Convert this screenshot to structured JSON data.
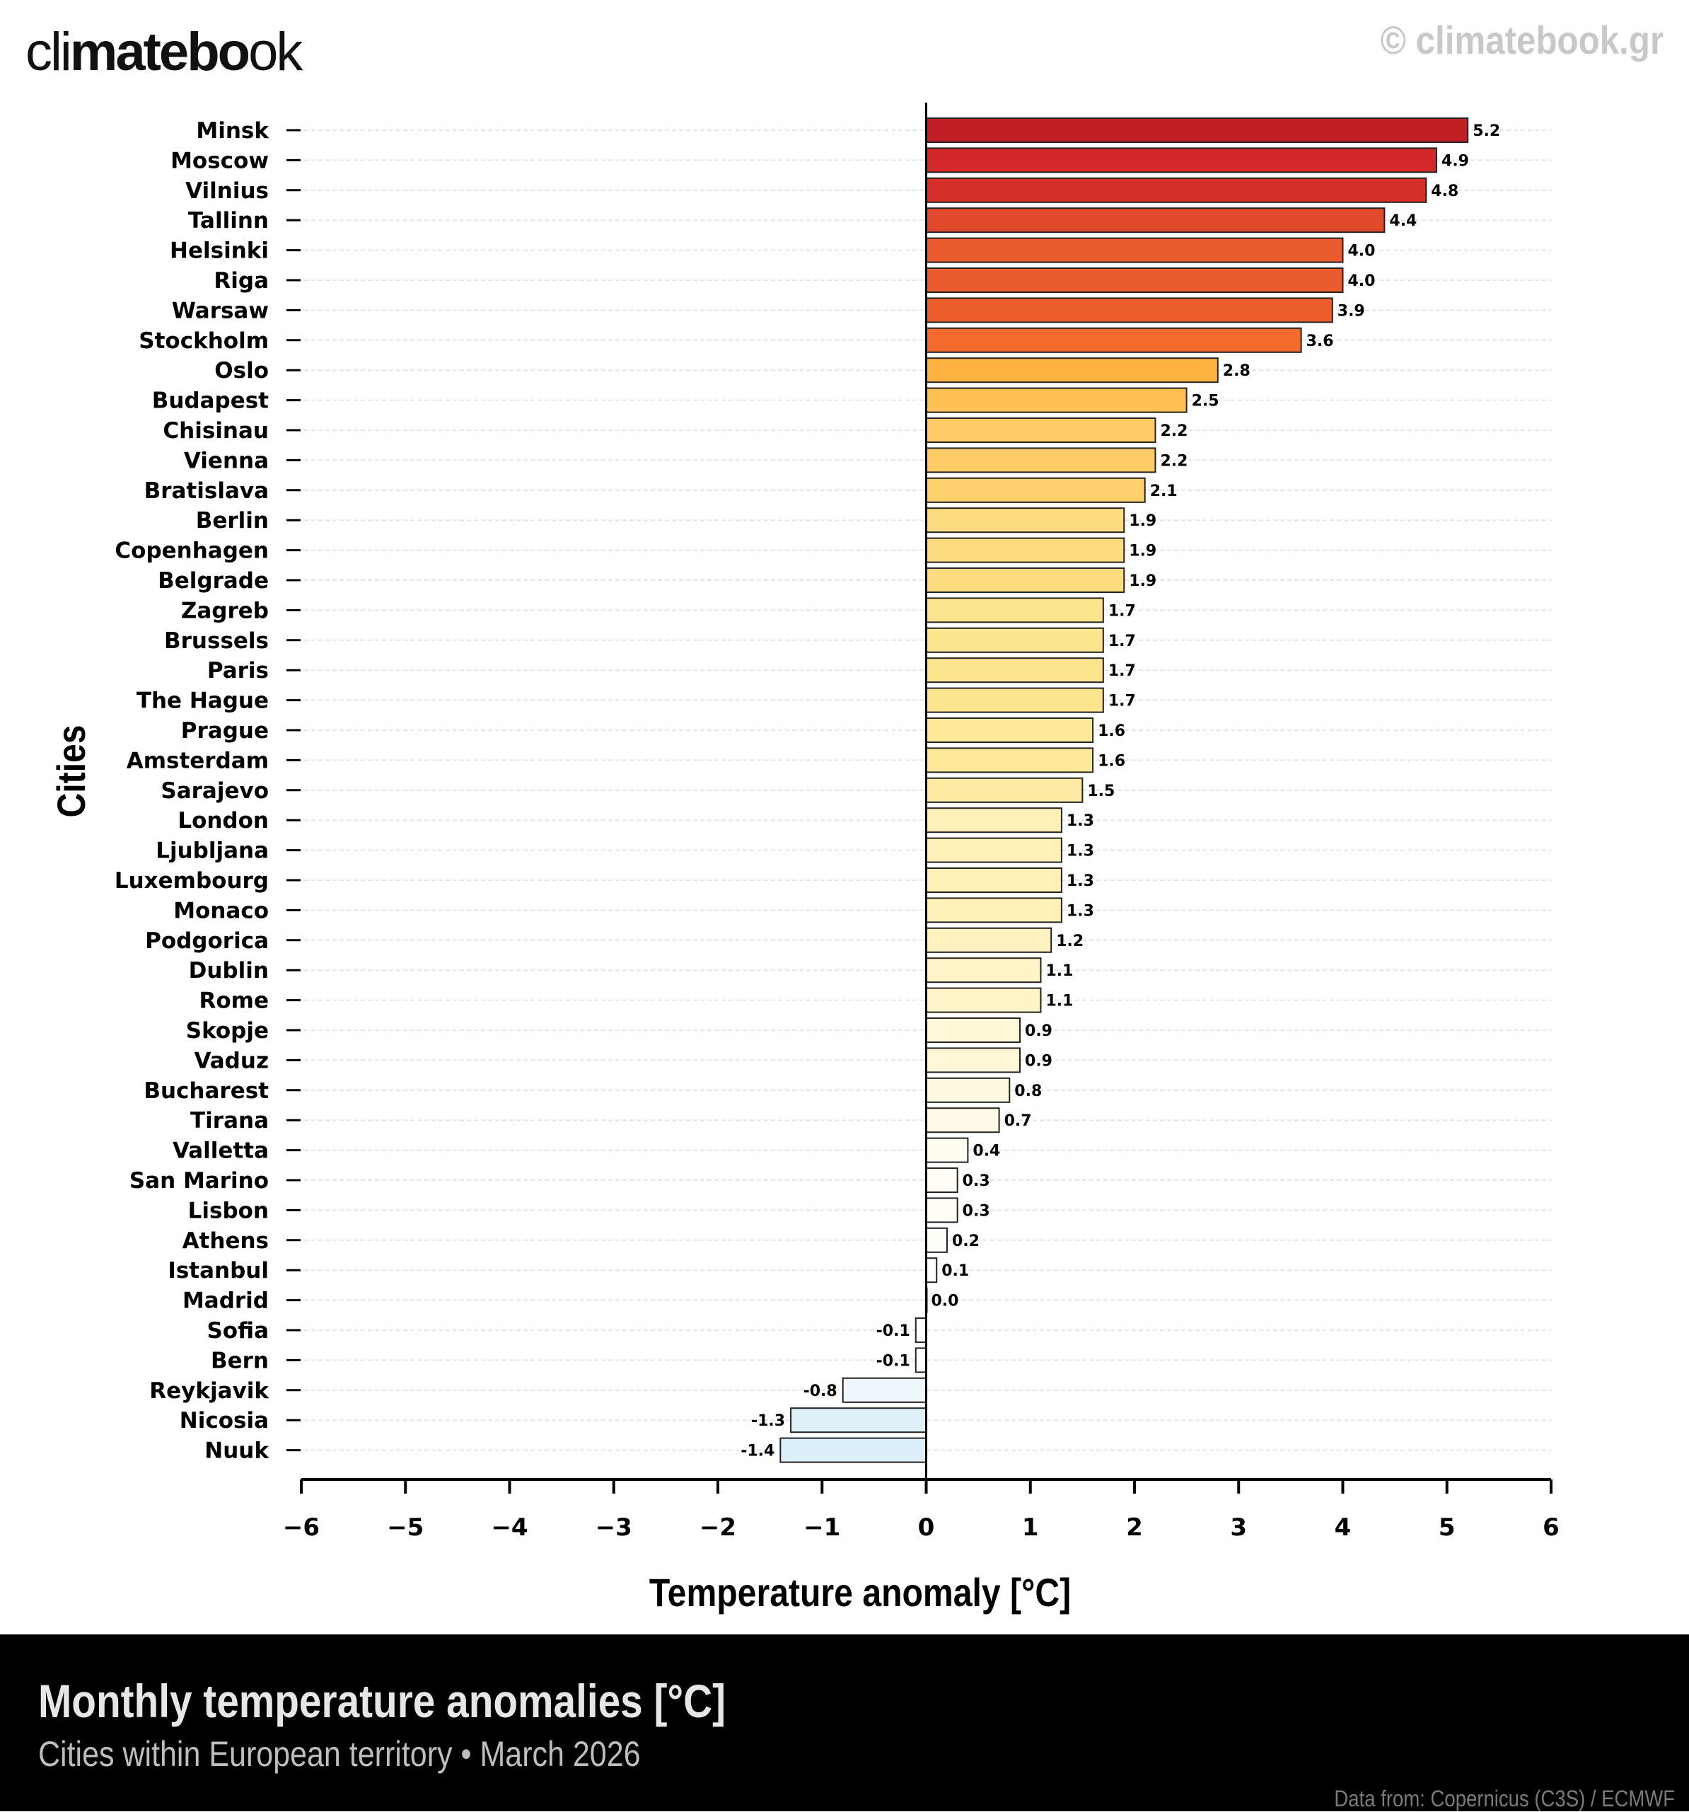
{
  "header": {
    "logo_thin": "cli",
    "logo_bold": "matebo",
    "logo_end": "ok",
    "copyright": "© climatebook.gr"
  },
  "footer": {
    "title": "Monthly temperature anomalies [°C]",
    "subtitle": "Cities within European territory • March 2026",
    "credit": "Data from: Copernicus (C3S) / ECMWF"
  },
  "chart_data": {
    "type": "bar",
    "orientation": "horizontal",
    "title": "Monthly temperature anomalies [°C]",
    "xlabel": "Temperature anomaly [°C]",
    "ylabel": "Cities",
    "xlim": [
      -6,
      6
    ],
    "xticks": [
      -6,
      -5,
      -4,
      -3,
      -2,
      -1,
      0,
      1,
      2,
      3,
      4,
      5,
      6
    ],
    "xtick_labels": [
      "−6",
      "−5",
      "−4",
      "−3",
      "−2",
      "−1",
      "0",
      "1",
      "2",
      "3",
      "4",
      "5",
      "6"
    ],
    "grid": "horizontal dashed",
    "categories": [
      "Minsk",
      "Moscow",
      "Vilnius",
      "Tallinn",
      "Helsinki",
      "Riga",
      "Warsaw",
      "Stockholm",
      "Oslo",
      "Budapest",
      "Chisinau",
      "Vienna",
      "Bratislava",
      "Berlin",
      "Copenhagen",
      "Belgrade",
      "Zagreb",
      "Brussels",
      "Paris",
      "The Hague",
      "Prague",
      "Amsterdam",
      "Sarajevo",
      "London",
      "Ljubljana",
      "Luxembourg",
      "Monaco",
      "Podgorica",
      "Dublin",
      "Rome",
      "Skopje",
      "Vaduz",
      "Bucharest",
      "Tirana",
      "Valletta",
      "San Marino",
      "Lisbon",
      "Athens",
      "Istanbul",
      "Madrid",
      "Sofia",
      "Bern",
      "Reykjavik",
      "Nicosia",
      "Nuuk"
    ],
    "values": [
      5.2,
      4.9,
      4.8,
      4.4,
      4.0,
      4.0,
      3.9,
      3.6,
      2.8,
      2.5,
      2.2,
      2.2,
      2.1,
      1.9,
      1.9,
      1.9,
      1.7,
      1.7,
      1.7,
      1.7,
      1.6,
      1.6,
      1.5,
      1.3,
      1.3,
      1.3,
      1.3,
      1.2,
      1.1,
      1.1,
      0.9,
      0.9,
      0.8,
      0.7,
      0.4,
      0.3,
      0.3,
      0.2,
      0.1,
      0.0,
      -0.1,
      -0.1,
      -0.8,
      -1.3,
      -1.4
    ],
    "value_labels": [
      "5.2",
      "4.9",
      "4.8",
      "4.4",
      "4.0",
      "4.0",
      "3.9",
      "3.6",
      "2.8",
      "2.5",
      "2.2",
      "2.2",
      "2.1",
      "1.9",
      "1.9",
      "1.9",
      "1.7",
      "1.7",
      "1.7",
      "1.7",
      "1.6",
      "1.6",
      "1.5",
      "1.3",
      "1.3",
      "1.3",
      "1.3",
      "1.2",
      "1.1",
      "1.1",
      "0.9",
      "0.9",
      "0.8",
      "0.7",
      "0.4",
      "0.3",
      "0.3",
      "0.2",
      "0.1",
      "0.0",
      "-0.1",
      "-0.1",
      "-0.8",
      "-1.3",
      "-1.4"
    ],
    "color_scale": [
      [
        -1.4,
        "#ddeff8"
      ],
      [
        0,
        "#ffffff"
      ],
      [
        0.7,
        "#fffbe8"
      ],
      [
        1.3,
        "#fff0b8"
      ],
      [
        1.7,
        "#fde590"
      ],
      [
        2.2,
        "#fecb66"
      ],
      [
        2.8,
        "#feb23f"
      ],
      [
        3.6,
        "#f26b2c"
      ],
      [
        4.4,
        "#e24a2e"
      ],
      [
        4.9,
        "#d32829"
      ],
      [
        5.2,
        "#c01f26"
      ]
    ]
  }
}
